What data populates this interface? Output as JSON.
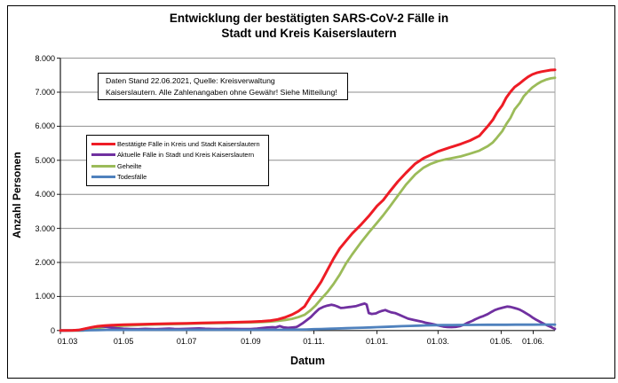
{
  "title": {
    "line1": "Entwicklung der bestätigten SARS-CoV-2 Fälle in",
    "line2": "Stadt und Kreis Kaiserslautern"
  },
  "annotation": {
    "line1": "Daten Stand 22.06.2021, Quelle: Kreisverwaltung",
    "line2": "Kaiserslautern. Alle Zahlenangaben ohne Gewähr! Siehe Mitteilung!"
  },
  "axes": {
    "y_title": "Anzahl Personen",
    "x_title": "Datum"
  },
  "colors": {
    "confirmed": "#ee1c25",
    "active": "#7030a0",
    "recovered": "#9bbb59",
    "deaths": "#4f81bd",
    "gridline": "#8e8e8e",
    "axis": "#1a1a1a",
    "plot_right_border": "#a6a6a6"
  },
  "chart_data": {
    "type": "line",
    "title": "Entwicklung der bestätigten SARS-CoV-2 Fälle in Stadt und Kreis Kaiserslautern",
    "xlabel": "Datum",
    "ylabel": "Anzahl Personen",
    "x_unit": "days since 01.03.2020",
    "x_range": [
      0,
      478
    ],
    "ylim": [
      0,
      8000
    ],
    "grid": true,
    "legend_position": "inside-upper-left",
    "y_ticks": [
      {
        "value": 0,
        "label": "0"
      },
      {
        "value": 1000,
        "label": "1.000"
      },
      {
        "value": 2000,
        "label": "2.000"
      },
      {
        "value": 3000,
        "label": "3.000"
      },
      {
        "value": 4000,
        "label": "4.000"
      },
      {
        "value": 5000,
        "label": "5.000"
      },
      {
        "value": 6000,
        "label": "6.000"
      },
      {
        "value": 7000,
        "label": "7.000"
      },
      {
        "value": 8000,
        "label": "8.000"
      }
    ],
    "x_ticks": [
      {
        "day": 0,
        "label": "01.03"
      },
      {
        "day": 61,
        "label": "01.05"
      },
      {
        "day": 122,
        "label": "01.07"
      },
      {
        "day": 184,
        "label": "01.09"
      },
      {
        "day": 245,
        "label": "01.11."
      },
      {
        "day": 306,
        "label": "01.01."
      },
      {
        "day": 365,
        "label": "01.03."
      },
      {
        "day": 426,
        "label": "01.05."
      },
      {
        "day": 457,
        "label": "01.06."
      }
    ],
    "series": [
      {
        "id": "confirmed",
        "name": "Bestätigte Fälle in Kreis und Stadt Kaiserslautern",
        "color": "#ee1c25",
        "stroke_width": 3,
        "points": [
          [
            0,
            0
          ],
          [
            12,
            5
          ],
          [
            18,
            15
          ],
          [
            24,
            55
          ],
          [
            30,
            95
          ],
          [
            36,
            125
          ],
          [
            43,
            145
          ],
          [
            50,
            157
          ],
          [
            61,
            168
          ],
          [
            75,
            180
          ],
          [
            92,
            192
          ],
          [
            107,
            202
          ],
          [
            122,
            212
          ],
          [
            137,
            224
          ],
          [
            153,
            232
          ],
          [
            168,
            242
          ],
          [
            184,
            255
          ],
          [
            195,
            270
          ],
          [
            203,
            292
          ],
          [
            210,
            325
          ],
          [
            217,
            385
          ],
          [
            224,
            470
          ],
          [
            230,
            565
          ],
          [
            236,
            705
          ],
          [
            242,
            1000
          ],
          [
            247,
            1200
          ],
          [
            252,
            1430
          ],
          [
            258,
            1770
          ],
          [
            264,
            2110
          ],
          [
            270,
            2410
          ],
          [
            276,
            2630
          ],
          [
            282,
            2850
          ],
          [
            290,
            3090
          ],
          [
            298,
            3360
          ],
          [
            306,
            3660
          ],
          [
            312,
            3830
          ],
          [
            318,
            4070
          ],
          [
            326,
            4370
          ],
          [
            334,
            4630
          ],
          [
            343,
            4900
          ],
          [
            351,
            5060
          ],
          [
            358,
            5160
          ],
          [
            365,
            5260
          ],
          [
            372,
            5330
          ],
          [
            379,
            5400
          ],
          [
            387,
            5480
          ],
          [
            396,
            5580
          ],
          [
            405,
            5720
          ],
          [
            413,
            6000
          ],
          [
            418,
            6190
          ],
          [
            422,
            6400
          ],
          [
            427,
            6610
          ],
          [
            431,
            6840
          ],
          [
            435,
            7010
          ],
          [
            439,
            7150
          ],
          [
            444,
            7260
          ],
          [
            448,
            7360
          ],
          [
            452,
            7450
          ],
          [
            456,
            7520
          ],
          [
            461,
            7575
          ],
          [
            465,
            7605
          ],
          [
            470,
            7630
          ],
          [
            474,
            7650
          ],
          [
            478,
            7660
          ]
        ]
      },
      {
        "id": "active",
        "name": "Aktuelle Fälle in Stadt und Kreis Kaiserslautern",
        "color": "#7030a0",
        "stroke_width": 2.8,
        "points": [
          [
            0,
            0
          ],
          [
            12,
            5
          ],
          [
            18,
            15
          ],
          [
            24,
            50
          ],
          [
            30,
            88
          ],
          [
            34,
            112
          ],
          [
            38,
            122
          ],
          [
            42,
            115
          ],
          [
            46,
            100
          ],
          [
            50,
            82
          ],
          [
            55,
            65
          ],
          [
            61,
            52
          ],
          [
            68,
            44
          ],
          [
            75,
            40
          ],
          [
            82,
            50
          ],
          [
            88,
            44
          ],
          [
            92,
            38
          ],
          [
            98,
            46
          ],
          [
            105,
            56
          ],
          [
            110,
            48
          ],
          [
            115,
            42
          ],
          [
            122,
            50
          ],
          [
            128,
            56
          ],
          [
            134,
            62
          ],
          [
            140,
            52
          ],
          [
            146,
            46
          ],
          [
            153,
            44
          ],
          [
            160,
            50
          ],
          [
            168,
            46
          ],
          [
            175,
            44
          ],
          [
            184,
            44
          ],
          [
            190,
            58
          ],
          [
            195,
            72
          ],
          [
            200,
            88
          ],
          [
            205,
            100
          ],
          [
            208,
            92
          ],
          [
            212,
            128
          ],
          [
            216,
            92
          ],
          [
            220,
            78
          ],
          [
            224,
            88
          ],
          [
            228,
            102
          ],
          [
            230,
            132
          ],
          [
            234,
            212
          ],
          [
            238,
            302
          ],
          [
            242,
            395
          ],
          [
            246,
            520
          ],
          [
            250,
            632
          ],
          [
            254,
            692
          ],
          [
            258,
            732
          ],
          [
            262,
            757
          ],
          [
            265,
            737
          ],
          [
            268,
            702
          ],
          [
            271,
            662
          ],
          [
            274,
            670
          ],
          [
            277,
            682
          ],
          [
            280,
            694
          ],
          [
            283,
            707
          ],
          [
            286,
            720
          ],
          [
            289,
            747
          ],
          [
            292,
            777
          ],
          [
            294,
            792
          ],
          [
            296,
            762
          ],
          [
            298,
            512
          ],
          [
            301,
            487
          ],
          [
            305,
            502
          ],
          [
            308,
            547
          ],
          [
            311,
            577
          ],
          [
            314,
            602
          ],
          [
            317,
            562
          ],
          [
            320,
            532
          ],
          [
            324,
            507
          ],
          [
            328,
            457
          ],
          [
            332,
            402
          ],
          [
            336,
            350
          ],
          [
            341,
            314
          ],
          [
            345,
            290
          ],
          [
            349,
            262
          ],
          [
            353,
            230
          ],
          [
            358,
            200
          ],
          [
            362,
            174
          ],
          [
            366,
            144
          ],
          [
            370,
            117
          ],
          [
            374,
            102
          ],
          [
            378,
            99
          ],
          [
            382,
            107
          ],
          [
            386,
            127
          ],
          [
            390,
            172
          ],
          [
            394,
            232
          ],
          [
            398,
            282
          ],
          [
            401,
            332
          ],
          [
            405,
            382
          ],
          [
            409,
            427
          ],
          [
            413,
            482
          ],
          [
            417,
            552
          ],
          [
            420,
            602
          ],
          [
            424,
            642
          ],
          [
            428,
            674
          ],
          [
            432,
            702
          ],
          [
            435,
            694
          ],
          [
            438,
            670
          ],
          [
            441,
            642
          ],
          [
            444,
            612
          ],
          [
            447,
            562
          ],
          [
            450,
            507
          ],
          [
            453,
            452
          ],
          [
            456,
            387
          ],
          [
            459,
            332
          ],
          [
            462,
            282
          ],
          [
            465,
            232
          ],
          [
            468,
            187
          ],
          [
            471,
            147
          ],
          [
            474,
            107
          ],
          [
            476,
            72
          ],
          [
            478,
            47
          ]
        ]
      },
      {
        "id": "recovered",
        "name": "Geheilte",
        "color": "#9bbb59",
        "stroke_width": 2.8,
        "points": [
          [
            0,
            0
          ],
          [
            22,
            0
          ],
          [
            28,
            20
          ],
          [
            34,
            55
          ],
          [
            40,
            92
          ],
          [
            47,
            117
          ],
          [
            54,
            130
          ],
          [
            61,
            140
          ],
          [
            75,
            162
          ],
          [
            92,
            178
          ],
          [
            107,
            188
          ],
          [
            122,
            198
          ],
          [
            137,
            210
          ],
          [
            153,
            220
          ],
          [
            168,
            230
          ],
          [
            184,
            240
          ],
          [
            195,
            250
          ],
          [
            203,
            264
          ],
          [
            210,
            282
          ],
          [
            217,
            308
          ],
          [
            224,
            345
          ],
          [
            230,
            392
          ],
          [
            236,
            462
          ],
          [
            242,
            600
          ],
          [
            247,
            745
          ],
          [
            252,
            925
          ],
          [
            258,
            1125
          ],
          [
            264,
            1365
          ],
          [
            270,
            1640
          ],
          [
            276,
            1965
          ],
          [
            282,
            2235
          ],
          [
            290,
            2565
          ],
          [
            298,
            2875
          ],
          [
            306,
            3165
          ],
          [
            312,
            3385
          ],
          [
            318,
            3625
          ],
          [
            326,
            3955
          ],
          [
            334,
            4285
          ],
          [
            343,
            4585
          ],
          [
            351,
            4785
          ],
          [
            358,
            4895
          ],
          [
            365,
            4975
          ],
          [
            372,
            5025
          ],
          [
            379,
            5065
          ],
          [
            387,
            5115
          ],
          [
            396,
            5195
          ],
          [
            405,
            5285
          ],
          [
            413,
            5415
          ],
          [
            418,
            5525
          ],
          [
            422,
            5665
          ],
          [
            427,
            5855
          ],
          [
            431,
            6065
          ],
          [
            435,
            6245
          ],
          [
            439,
            6495
          ],
          [
            444,
            6685
          ],
          [
            448,
            6885
          ],
          [
            452,
            7015
          ],
          [
            456,
            7135
          ],
          [
            461,
            7245
          ],
          [
            465,
            7315
          ],
          [
            470,
            7375
          ],
          [
            474,
            7405
          ],
          [
            478,
            7425
          ]
        ]
      },
      {
        "id": "deaths",
        "name": "Todesfälle",
        "color": "#4f81bd",
        "stroke_width": 2.8,
        "points": [
          [
            0,
            0
          ],
          [
            20,
            2
          ],
          [
            28,
            8
          ],
          [
            36,
            14
          ],
          [
            45,
            17
          ],
          [
            61,
            19
          ],
          [
            92,
            20
          ],
          [
            122,
            20
          ],
          [
            153,
            21
          ],
          [
            184,
            21
          ],
          [
            205,
            22
          ],
          [
            220,
            24
          ],
          [
            230,
            27
          ],
          [
            238,
            32
          ],
          [
            245,
            38
          ],
          [
            252,
            44
          ],
          [
            260,
            52
          ],
          [
            268,
            60
          ],
          [
            276,
            68
          ],
          [
            284,
            76
          ],
          [
            292,
            84
          ],
          [
            300,
            92
          ],
          [
            306,
            98
          ],
          [
            314,
            108
          ],
          [
            322,
            118
          ],
          [
            330,
            128
          ],
          [
            338,
            136
          ],
          [
            346,
            144
          ],
          [
            354,
            150
          ],
          [
            362,
            155
          ],
          [
            370,
            158
          ],
          [
            379,
            161
          ],
          [
            388,
            163
          ],
          [
            396,
            165
          ],
          [
            405,
            167
          ],
          [
            413,
            168
          ],
          [
            422,
            169
          ],
          [
            431,
            170
          ],
          [
            440,
            171
          ],
          [
            448,
            172
          ],
          [
            456,
            173
          ],
          [
            465,
            174
          ],
          [
            478,
            175
          ]
        ]
      }
    ]
  }
}
